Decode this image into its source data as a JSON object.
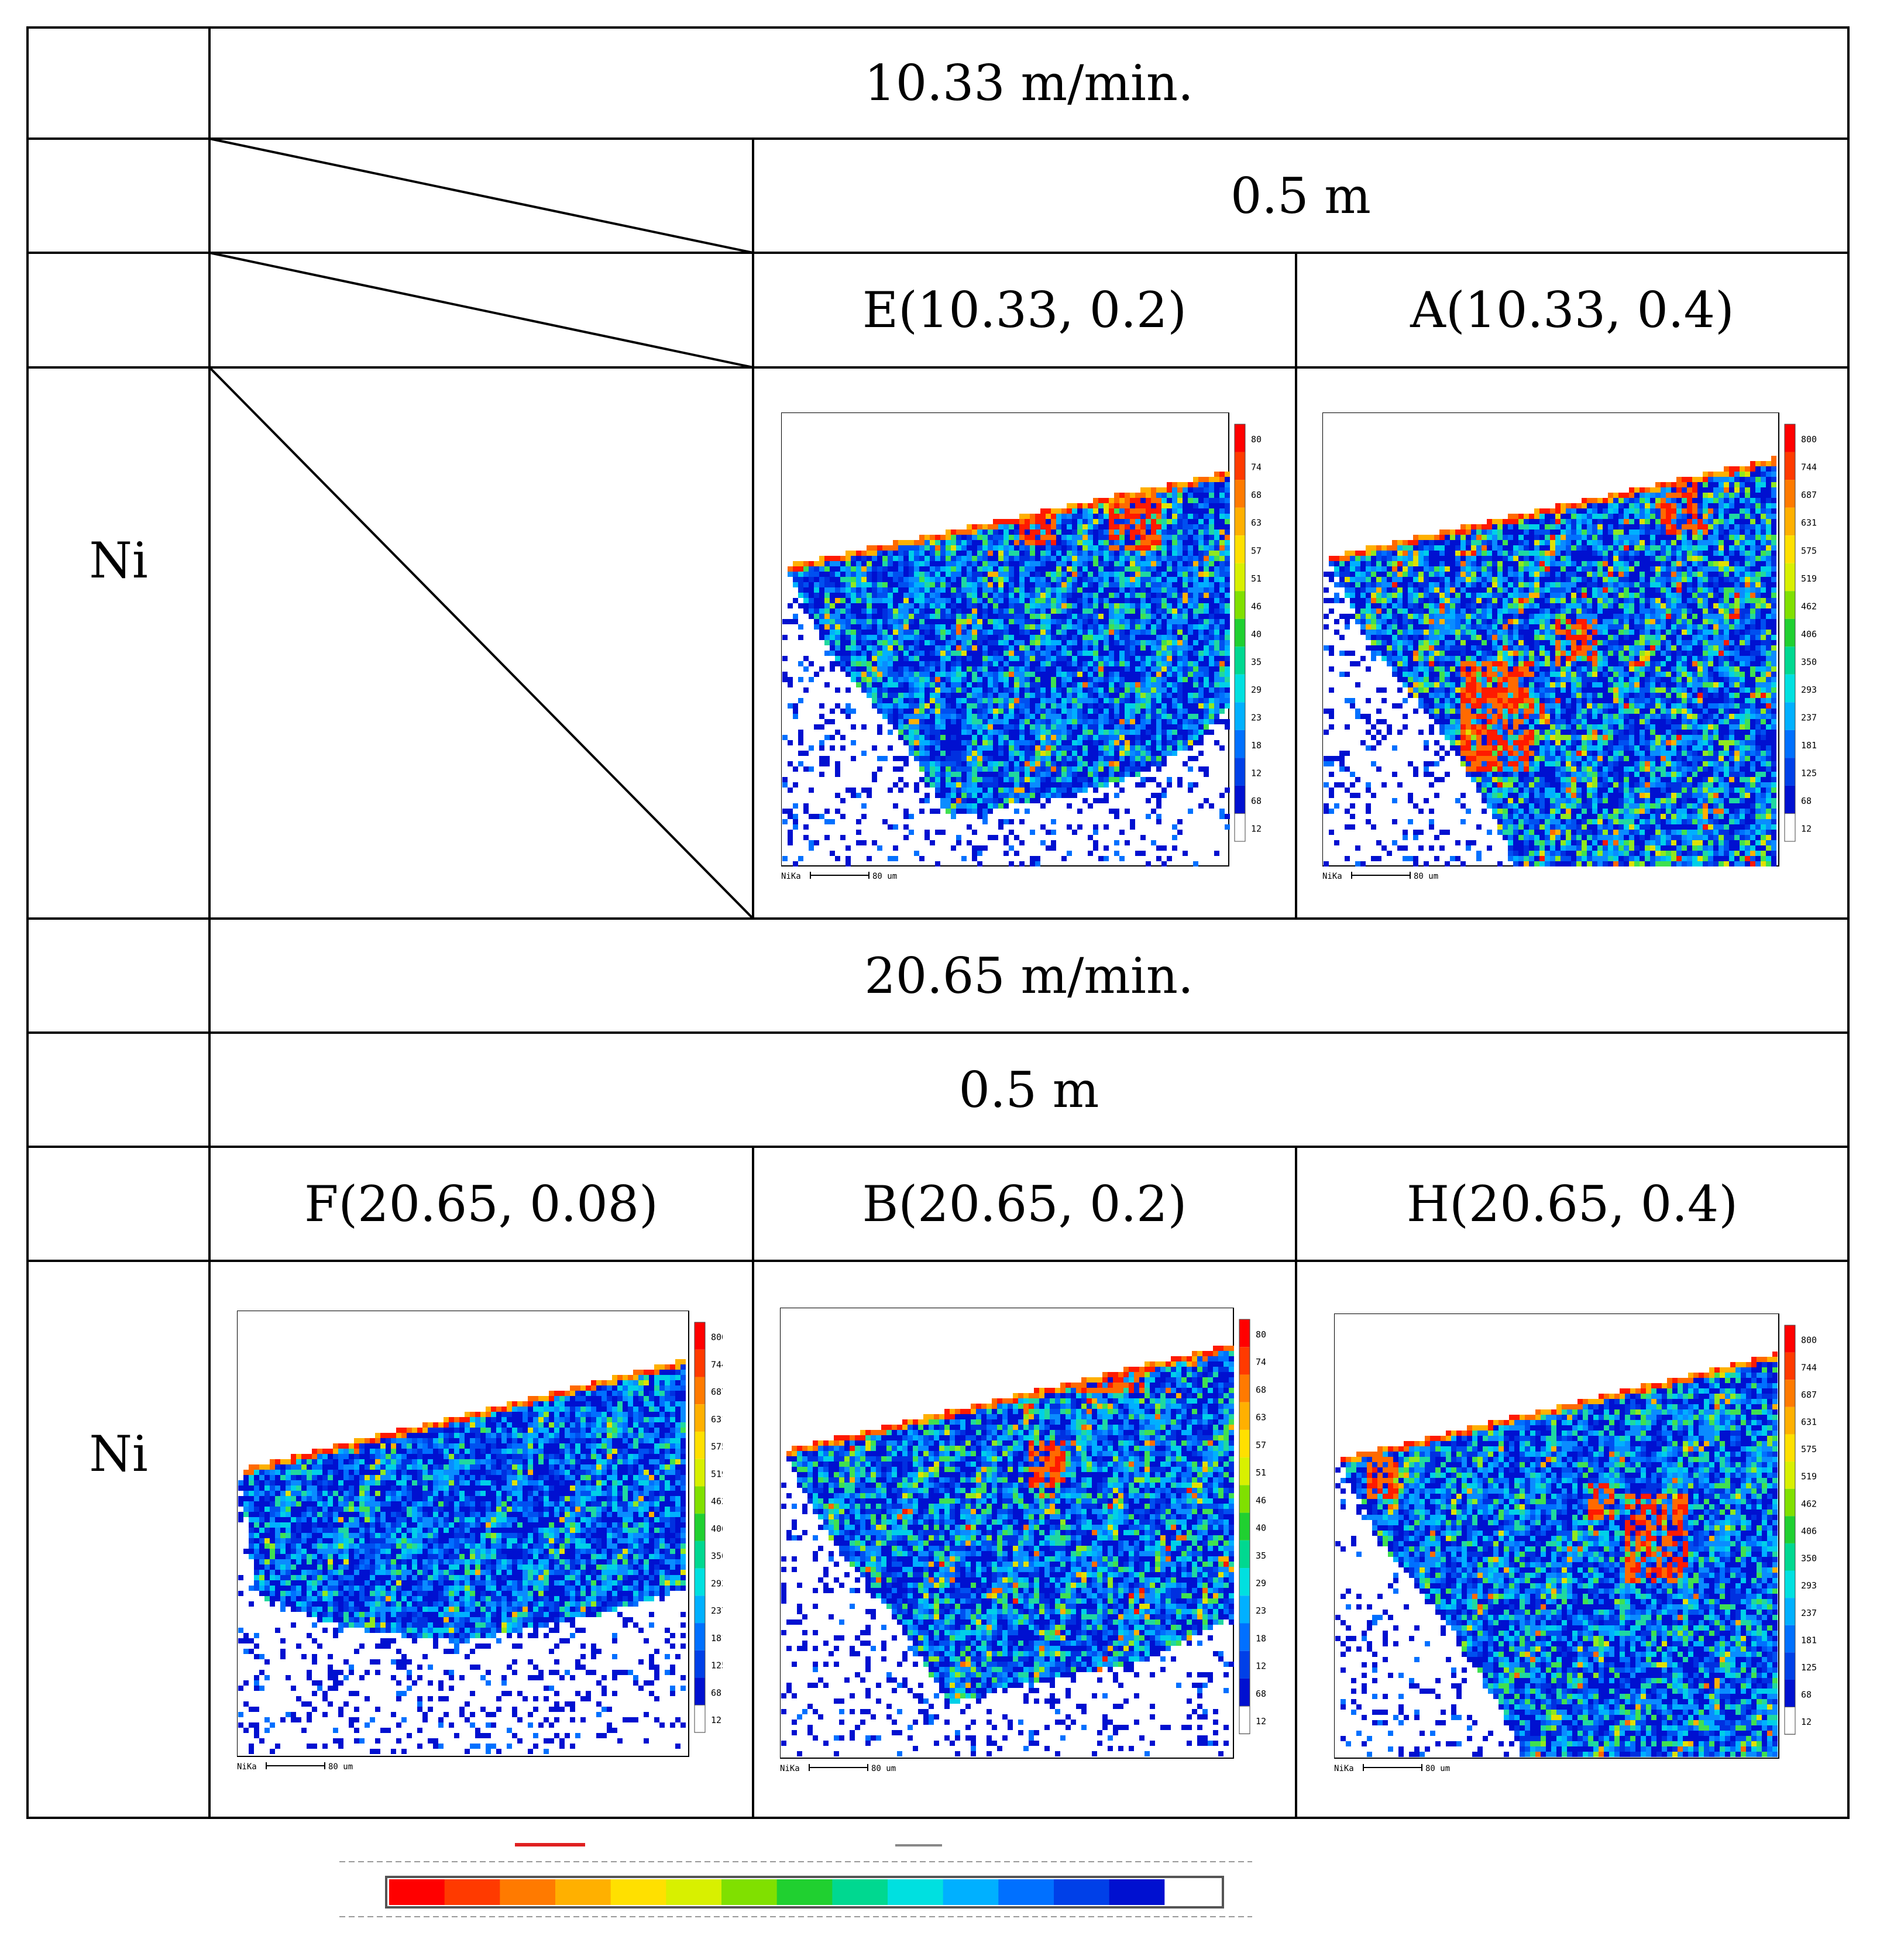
{
  "table": {
    "speed_1": "10.33 m/min.",
    "depth_1": "0.5 m",
    "sample_E": "E(10.33, 0.2)",
    "sample_A": "A(10.33, 0.4)",
    "element_row1": "Ni",
    "speed_2": "20.65 m/min.",
    "depth_2": "0.5 m",
    "sample_F": "F(20.65, 0.08)",
    "sample_B": "B(20.65, 0.2)",
    "sample_H": "H(20.65, 0.4)",
    "element_row2": "Ni"
  },
  "colorbar": {
    "ticks": [
      "800",
      "744",
      "687",
      "631",
      "575",
      "519",
      "462",
      "406",
      "350",
      "293",
      "237",
      "181",
      "125",
      "68",
      "12"
    ],
    "colors": [
      "#ff0000",
      "#ff3a00",
      "#ff7a00",
      "#ffb000",
      "#ffe000",
      "#d8f000",
      "#80e000",
      "#20d030",
      "#00d890",
      "#00e0e0",
      "#00b0ff",
      "#0070ff",
      "#0040e8",
      "#0010d0",
      "#ffffff"
    ]
  },
  "map_labels": {
    "element": "NiKa",
    "scale": "80 um"
  },
  "colors": {
    "line": "#000000",
    "background": "#ffffff"
  }
}
